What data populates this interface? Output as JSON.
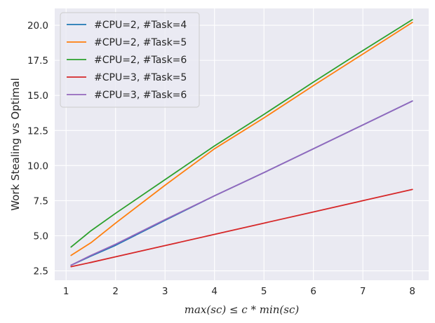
{
  "chart_data": {
    "type": "line",
    "title": "",
    "xlabel": "max(sc) ≤ c * min(sc)",
    "ylabel": "Work Stealing vs Optimal",
    "xlim": [
      0.77,
      8.33
    ],
    "ylim": [
      1.83,
      21.2
    ],
    "x_ticks": [
      1,
      2,
      3,
      4,
      5,
      6,
      7,
      8
    ],
    "x_tick_labels": [
      "1",
      "2",
      "3",
      "4",
      "5",
      "6",
      "7",
      "8"
    ],
    "y_ticks": [
      2.5,
      5.0,
      7.5,
      10.0,
      12.5,
      15.0,
      17.5,
      20.0
    ],
    "y_tick_labels": [
      "2.5",
      "5.0",
      "7.5",
      "10.0",
      "12.5",
      "15.0",
      "17.5",
      "20.0"
    ],
    "grid": true,
    "legend_position": "top-left",
    "series": [
      {
        "name": "#CPU=2, #Task=4",
        "color": "#1f77b4",
        "x": [
          1.1,
          1.5,
          2,
          3,
          4,
          5,
          6,
          7,
          8
        ],
        "y": [
          2.9,
          3.55,
          4.32,
          6.1,
          7.85,
          9.5,
          11.2,
          12.9,
          14.6
        ]
      },
      {
        "name": "#CPU=2, #Task=5",
        "color": "#ff7f0e",
        "x": [
          1.1,
          1.5,
          2,
          3,
          4,
          5,
          6,
          7,
          8
        ],
        "y": [
          3.6,
          4.5,
          5.9,
          8.6,
          11.2,
          13.4,
          15.7,
          17.95,
          20.2
        ]
      },
      {
        "name": "#CPU=2, #Task=6",
        "color": "#2ca02c",
        "x": [
          1.1,
          1.5,
          2,
          3,
          4,
          5,
          6,
          7,
          8
        ],
        "y": [
          4.2,
          5.35,
          6.6,
          9.0,
          11.4,
          13.65,
          15.95,
          18.2,
          20.4
        ]
      },
      {
        "name": "#CPU=3, #Task=5",
        "color": "#d62728",
        "x": [
          1.1,
          1.5,
          2,
          3,
          4,
          5,
          6,
          7,
          8
        ],
        "y": [
          2.8,
          3.1,
          3.5,
          4.3,
          5.1,
          5.9,
          6.7,
          7.5,
          8.3
        ]
      },
      {
        "name": "#CPU=3, #Task=6",
        "color": "#9467bd",
        "x": [
          1.1,
          1.5,
          2,
          3,
          4,
          5,
          6,
          7,
          8
        ],
        "y": [
          2.9,
          3.6,
          4.4,
          6.15,
          7.85,
          9.5,
          11.2,
          12.9,
          14.6
        ]
      }
    ]
  }
}
